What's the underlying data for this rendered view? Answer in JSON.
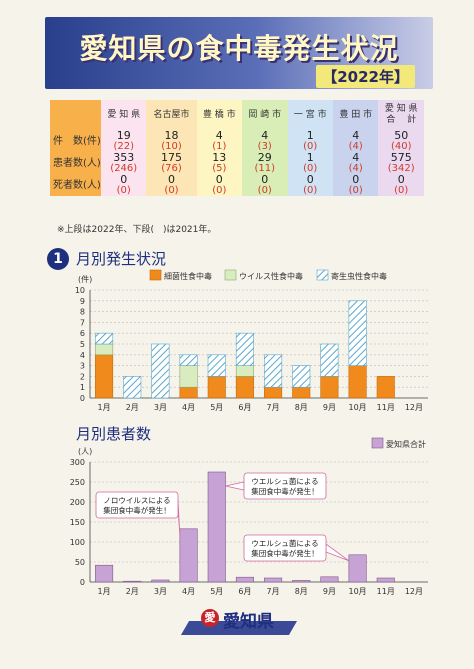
{
  "header": {
    "title": "愛知県の食中毒発生状況",
    "year": "【2022年】"
  },
  "summary": {
    "columns": [
      {
        "name": "愛 知 県",
        "color": "#fbe4ef"
      },
      {
        "name": "名古屋市",
        "color": "#fde6b6"
      },
      {
        "name": "豊 橋 市",
        "color": "#fdf6c2"
      },
      {
        "name": "岡 崎 市",
        "color": "#d8eeb6"
      },
      {
        "name": "一 宮 市",
        "color": "#cfe3f5"
      },
      {
        "name": "豊 田 市",
        "color": "#c9d3ee"
      },
      {
        "name": "愛 知 県\n合　 計",
        "color": "#ead9ef"
      }
    ],
    "rows": [
      {
        "label": "件　数(件)",
        "cur": [
          "19",
          "18",
          "4",
          "4",
          "1",
          "4",
          "50"
        ],
        "prev": [
          "(22)",
          "(10)",
          "(1)",
          "(3)",
          "(0)",
          "(4)",
          "(40)"
        ]
      },
      {
        "label": "患者数(人)",
        "cur": [
          "353",
          "175",
          "13",
          "29",
          "1",
          "4",
          "575"
        ],
        "prev": [
          "(246)",
          "(76)",
          "(5)",
          "(11)",
          "(0)",
          "(4)",
          "(342)"
        ]
      },
      {
        "label": "死者数(人)",
        "cur": [
          "0",
          "0",
          "0",
          "0",
          "0",
          "0",
          "0"
        ],
        "prev": [
          "(0)",
          "(0)",
          "(0)",
          "(0)",
          "(0)",
          "(0)",
          "(0)"
        ]
      }
    ],
    "note": "※上段は2022年、下段(　)は2021年。"
  },
  "section1": {
    "num": "1",
    "title": "月別発生状況"
  },
  "section2": {
    "title": "月別患者数"
  },
  "colors": {
    "bacterial": "#f08a1c",
    "viral": "#d8ecc0",
    "parasite": "#bfe0f0",
    "patients": "#c7a2d4"
  },
  "chart_data": [
    {
      "type": "bar",
      "stacked": true,
      "ylabel": "(件)",
      "ylim": [
        0,
        10
      ],
      "yticks": [
        0,
        1,
        2,
        3,
        4,
        5,
        6,
        7,
        8,
        9,
        10
      ],
      "categories": [
        "1月",
        "2月",
        "3月",
        "4月",
        "5月",
        "6月",
        "7月",
        "8月",
        "9月",
        "10月",
        "11月",
        "12月"
      ],
      "legend_position": "top-right",
      "series": [
        {
          "name": "細菌性食中毒",
          "values": [
            4,
            0,
            0,
            1,
            2,
            2,
            1,
            1,
            2,
            3,
            2,
            0
          ]
        },
        {
          "name": "ウイルス性食中毒",
          "values": [
            1,
            0,
            0,
            2,
            0,
            1,
            0,
            0,
            0,
            0,
            0,
            0
          ]
        },
        {
          "name": "寄生虫性食中毒",
          "values": [
            1,
            2,
            5,
            1,
            2,
            3,
            3,
            2,
            3,
            6,
            0,
            0
          ]
        }
      ]
    },
    {
      "type": "bar",
      "ylabel": "(人)",
      "ylim": [
        0,
        300
      ],
      "yticks": [
        0,
        50,
        100,
        150,
        200,
        250,
        300
      ],
      "categories": [
        "1月",
        "2月",
        "3月",
        "4月",
        "5月",
        "6月",
        "7月",
        "8月",
        "9月",
        "10月",
        "11月",
        "12月"
      ],
      "legend_position": "top-right",
      "series": [
        {
          "name": "愛知県合計",
          "values": [
            42,
            2,
            5,
            133,
            275,
            12,
            10,
            4,
            13,
            68,
            10,
            0
          ]
        }
      ],
      "annotations": [
        {
          "text": "ノロウイルスによる\n集団食中毒が発生！",
          "target": "4月"
        },
        {
          "text": "ウエルシュ菌による\n集団食中毒が発生！",
          "target": "5月"
        },
        {
          "text": "ウエルシュ菌による\n集団食中毒が発生！",
          "target": "10月"
        }
      ]
    }
  ],
  "logo": {
    "mark": "愛",
    "text": "愛知県"
  }
}
